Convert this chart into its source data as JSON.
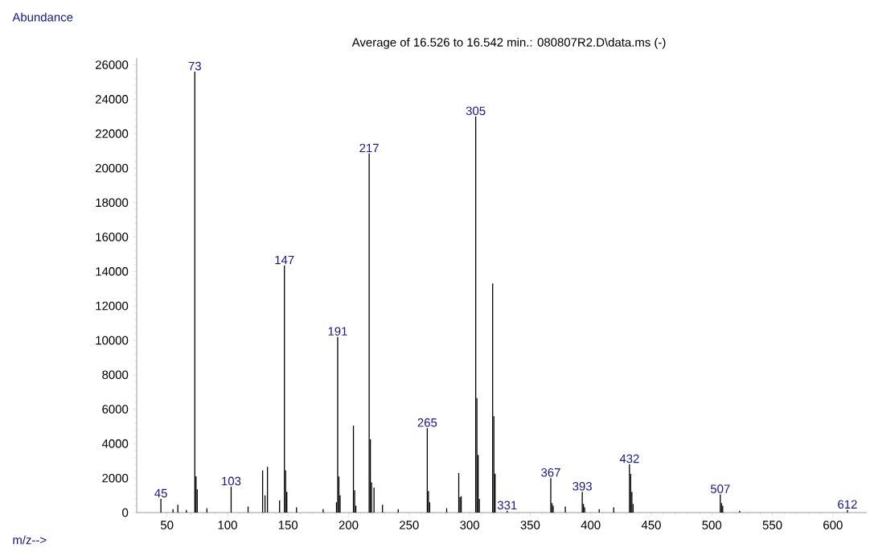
{
  "chart_data": {
    "type": "bar",
    "title": "Average of 16.526 to 16.542 min.: 080807R2.D\\data.ms (-)",
    "xlabel": "m/z-->",
    "ylabel": "Abundance",
    "x": [
      45,
      55,
      59,
      66,
      73,
      74,
      75,
      83,
      103,
      117,
      129,
      131,
      133,
      143,
      147,
      148,
      149,
      157,
      179,
      190,
      191,
      192,
      193,
      204,
      205,
      206,
      217,
      218,
      219,
      221,
      228,
      241,
      265,
      266,
      267,
      281,
      291,
      292,
      293,
      305,
      306,
      307,
      308,
      319,
      320,
      321,
      331,
      367,
      368,
      369,
      379,
      393,
      394,
      395,
      407,
      419,
      432,
      433,
      434,
      435,
      507,
      508,
      509,
      523,
      612
    ],
    "values": [
      800,
      200,
      450,
      150,
      25600,
      2100,
      1350,
      250,
      1500,
      350,
      2450,
      1000,
      2650,
      700,
      14350,
      2450,
      1200,
      300,
      200,
      600,
      10200,
      2100,
      1000,
      5050,
      1300,
      400,
      20850,
      4250,
      1750,
      1450,
      450,
      200,
      4900,
      1250,
      600,
      250,
      2300,
      900,
      950,
      23000,
      6650,
      3350,
      800,
      13300,
      5600,
      2250,
      100,
      2000,
      550,
      400,
      350,
      1200,
      500,
      300,
      200,
      300,
      2800,
      2250,
      1200,
      500,
      1050,
      550,
      400,
      100,
      150
    ],
    "color": "#000000",
    "xlim": [
      25,
      628
    ],
    "ylim": [
      0,
      26400
    ],
    "xticks": [
      50,
      100,
      150,
      200,
      250,
      300,
      350,
      400,
      450,
      500,
      550,
      600
    ],
    "yticks": [
      0,
      2000,
      4000,
      6000,
      8000,
      10000,
      12000,
      14000,
      16000,
      18000,
      20000,
      22000,
      24000,
      26000
    ],
    "annotations": [
      {
        "text": "45",
        "x": 45,
        "y": 800
      },
      {
        "text": "73",
        "x": 73,
        "y": 25600
      },
      {
        "text": "103",
        "x": 103,
        "y": 1500
      },
      {
        "text": "147",
        "x": 147,
        "y": 14350
      },
      {
        "text": "191",
        "x": 191,
        "y": 10200
      },
      {
        "text": "217",
        "x": 217,
        "y": 20850
      },
      {
        "text": "265",
        "x": 265,
        "y": 4900
      },
      {
        "text": "305",
        "x": 305,
        "y": 23000
      },
      {
        "text": "331",
        "x": 331,
        "y": 100
      },
      {
        "text": "367",
        "x": 367,
        "y": 2000
      },
      {
        "text": "393",
        "x": 393,
        "y": 1200
      },
      {
        "text": "432",
        "x": 432,
        "y": 2800
      },
      {
        "text": "507",
        "x": 507,
        "y": 1050
      },
      {
        "text": "612",
        "x": 612,
        "y": 150
      }
    ]
  }
}
